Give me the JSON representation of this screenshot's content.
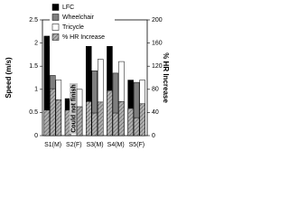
{
  "chart_data": {
    "type": "bar",
    "categories": [
      "S1(M)",
      "S2(F)",
      "S3(M)",
      "S4(M)",
      "S5(F)"
    ],
    "series": [
      {
        "name": "LFC",
        "color": "#000000",
        "values": [
          2.15,
          0.8,
          1.95,
          1.95,
          1.2
        ]
      },
      {
        "name": "Wheelchair",
        "color": "#7f7f7f",
        "values": [
          1.3,
          null,
          1.4,
          1.35,
          1.15
        ]
      },
      {
        "name": "Tricycle",
        "color": "#ffffff",
        "values": [
          1.2,
          1.0,
          1.65,
          1.6,
          1.2
        ]
      }
    ],
    "overlay": {
      "name": "% HR Increase",
      "axis": "y2",
      "color": "#a0a0a0",
      "values": [
        [
          44,
          44,
          59,
          78,
          47
        ],
        [
          81,
          null,
          39,
          39,
          31
        ],
        [
          62,
          50,
          58,
          59,
          55
        ]
      ]
    },
    "ylabel": "Speed (m/s)",
    "y2label": "% HR Increase",
    "ylim": [
      0,
      2.5
    ],
    "yticks": [
      0,
      0.5,
      1,
      1.5,
      2,
      2.5
    ],
    "y2lim": [
      0,
      200
    ],
    "y2ticks": [
      0,
      40,
      80,
      120,
      160,
      200
    ],
    "annotation": "Could not finish",
    "legend": "upper left"
  }
}
